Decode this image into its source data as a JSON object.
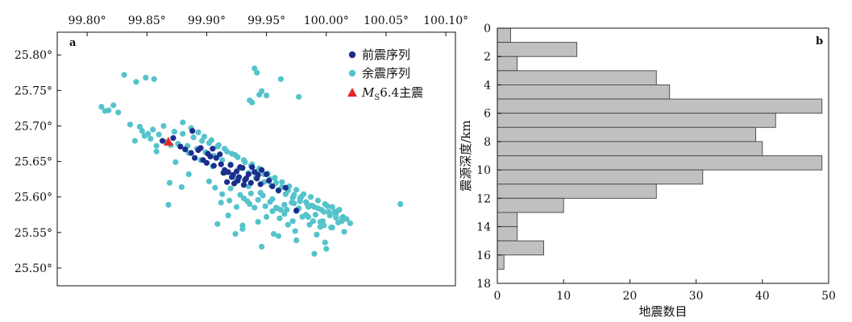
{
  "chart_data": [
    {
      "type": "scatter",
      "panel_label": "a",
      "x_ticks": [
        "99.80°",
        "99.85°",
        "99.90°",
        "99.95°",
        "100.00°",
        "100.05°",
        "100.10°"
      ],
      "y_ticks": [
        "25.80°",
        "25.75°",
        "25.70°",
        "25.65°",
        "25.60°",
        "25.55°",
        "25.50°"
      ],
      "xlim": [
        99.775,
        100.108
      ],
      "ylim": [
        25.475,
        25.832
      ],
      "legend_position": "top-right",
      "series": [
        {
          "name": "前震序列",
          "color": "#1c2e8c",
          "marker": "circle",
          "x": [
            99.863,
            99.872,
            99.878,
            99.882,
            99.887,
            99.89,
            99.893,
            99.897,
            99.9,
            99.903,
            99.906,
            99.908,
            99.912,
            99.915,
            99.918,
            99.92,
            99.922,
            99.925,
            99.927,
            99.93,
            99.932,
            99.935,
            99.937,
            99.94,
            99.942,
            99.945,
            99.95,
            99.955,
            99.96,
            99.966,
            99.905,
            99.911,
            99.917,
            99.923,
            99.928,
            99.933,
            99.946,
            99.952,
            99.975,
            99.888,
            99.895,
            99.901,
            99.914,
            99.921,
            99.926,
            99.931,
            99.938,
            99.943
          ],
          "y": [
            25.679,
            25.683,
            25.671,
            25.667,
            25.662,
            25.655,
            25.666,
            25.652,
            25.648,
            25.657,
            25.644,
            25.655,
            25.646,
            25.638,
            25.635,
            25.645,
            25.631,
            25.636,
            25.628,
            25.641,
            25.624,
            25.632,
            25.62,
            25.635,
            25.626,
            25.618,
            25.632,
            25.615,
            25.609,
            25.613,
            25.668,
            25.66,
            25.621,
            25.619,
            25.642,
            25.626,
            25.638,
            25.623,
            25.581,
            25.693,
            25.669,
            25.661,
            25.634,
            25.628,
            25.623,
            25.617,
            25.642,
            25.631
          ]
        },
        {
          "name": "余震序列",
          "color": "#55c3cb",
          "marker": "circle",
          "x": [
            99.812,
            99.818,
            99.822,
            99.826,
            99.836,
            99.844,
            99.851,
            99.858,
            99.846,
            99.84,
            99.848,
            99.853,
            99.855,
            99.86,
            99.864,
            99.866,
            99.87,
            99.873,
            99.876,
            99.88,
            99.884,
            99.889,
            99.892,
            99.896,
            99.899,
            99.902,
            99.906,
            99.909,
            99.913,
            99.917,
            99.92,
            99.924,
            99.927,
            99.931,
            99.935,
            99.938,
            99.941,
            99.944,
            99.948,
            99.951,
            99.954,
            99.957,
            99.96,
            99.963,
            99.966,
            99.969,
            99.972,
            99.975,
            99.978,
            99.981,
            99.984,
            99.987,
            99.99,
            99.993,
            99.996,
            99.999,
            100.002,
            100.005,
            100.008,
            100.011,
            100.014,
            100.017,
            100.02,
            99.88,
            99.887,
            99.893,
            99.898,
            99.904,
            99.91,
            99.915,
            99.921,
            99.926,
            99.932,
            99.937,
            99.943,
            99.948,
            99.953,
            99.958,
            99.963,
            99.968,
            99.973,
            99.978,
            99.983,
            99.988,
            99.993,
            99.998,
            100.003,
            100.008,
            100.013,
            99.885,
            99.895,
            99.905,
            99.915,
            99.925,
            99.935,
            99.945,
            99.955,
            99.965,
            99.975,
            99.985,
            99.995,
            100.005,
            100.015,
            99.94,
            99.942,
            99.944,
            99.936,
            99.946,
            99.95,
            99.962,
            99.977,
            99.938,
            99.815,
            99.831,
            99.841,
            99.849,
            99.856,
            99.869,
            99.868,
            99.885,
            99.874,
            99.858,
            99.879,
            99.909,
            99.912,
            99.918,
            99.924,
            99.93,
            99.936,
            99.943,
            99.95,
            99.956,
            99.962,
            99.968,
            99.974,
            99.98,
            99.986,
            99.992,
            99.998,
            100.004,
            100.01,
            99.902,
            99.907,
            99.913,
            99.919,
            99.925,
            99.931,
            99.937,
            99.943,
            99.949,
            99.955,
            99.961,
            99.967,
            99.973,
            99.979,
            99.985,
            99.991,
            99.997,
            100.003,
            100.009,
            99.92,
            99.928,
            99.934,
            99.94,
            99.947,
            99.953,
            99.959,
            99.965,
            99.971,
            99.977,
            99.983,
            99.989,
            99.995,
            100.001,
            100.007,
            100.013,
            99.93,
            99.946,
            99.96,
            99.975,
            99.99,
            100.0,
            99.972,
            99.958,
            99.999,
            100.062
          ],
          "y": [
            25.727,
            25.722,
            25.729,
            25.719,
            25.702,
            25.699,
            25.689,
            25.672,
            25.693,
            25.679,
            25.686,
            25.682,
            25.695,
            25.688,
            25.7,
            25.677,
            25.673,
            25.692,
            25.675,
            25.689,
            25.672,
            25.684,
            25.668,
            25.679,
            25.663,
            25.676,
            25.658,
            25.671,
            25.652,
            25.664,
            25.646,
            25.659,
            25.64,
            25.652,
            25.634,
            25.646,
            25.627,
            25.64,
            25.621,
            25.633,
            25.616,
            25.627,
            25.61,
            25.621,
            25.604,
            25.615,
            25.599,
            25.61,
            25.594,
            25.604,
            25.59,
            25.6,
            25.586,
            25.595,
            25.582,
            25.59,
            25.579,
            25.586,
            25.576,
            25.582,
            25.572,
            25.569,
            25.563,
            25.705,
            25.697,
            25.691,
            25.685,
            25.68,
            25.673,
            25.668,
            25.661,
            25.656,
            25.649,
            25.644,
            25.637,
            25.632,
            25.625,
            25.62,
            25.614,
            25.609,
            25.603,
            25.598,
            25.593,
            25.588,
            25.584,
            25.579,
            25.575,
            25.571,
            25.566,
            25.662,
            25.652,
            25.643,
            25.634,
            25.625,
            25.615,
            25.606,
            25.597,
            25.589,
            25.58,
            25.572,
            25.565,
            25.557,
            25.551,
            25.781,
            25.775,
            25.744,
            25.736,
            25.749,
            25.743,
            25.766,
            25.741,
            25.733,
            25.721,
            25.772,
            25.762,
            25.768,
            25.766,
            25.62,
            25.589,
            25.632,
            25.649,
            25.664,
            25.614,
            25.562,
            25.592,
            25.574,
            25.548,
            25.56,
            25.59,
            25.565,
            25.572,
            25.548,
            25.582,
            25.561,
            25.552,
            25.572,
            25.561,
            25.547,
            25.56,
            25.557,
            25.564,
            25.622,
            25.613,
            25.604,
            25.595,
            25.586,
            25.598,
            25.605,
            25.596,
            25.587,
            25.58,
            25.57,
            25.582,
            25.591,
            25.6,
            25.586,
            25.575,
            25.566,
            25.574,
            25.58,
            25.612,
            25.603,
            25.594,
            25.585,
            25.602,
            25.593,
            25.584,
            25.576,
            25.592,
            25.584,
            25.575,
            25.566,
            25.558,
            25.587,
            25.579,
            25.57,
            25.555,
            25.53,
            25.545,
            25.539,
            25.52,
            25.527,
            25.566,
            25.585,
            25.536,
            25.59
          ]
        }
      ],
      "mainshock": {
        "label": "6.4主震",
        "magnitude_prefix": "M",
        "magnitude_sub": "S",
        "x": 99.868,
        "y": 25.678,
        "color": "#e8262a",
        "marker": "triangle"
      }
    },
    {
      "type": "bar",
      "orientation": "horizontal",
      "panel_label": "b",
      "xlabel": "地震数目",
      "ylabel": "震源深度/km",
      "xlim": [
        0,
        50
      ],
      "ylim": [
        0,
        18
      ],
      "x_ticks": [
        "0",
        "10",
        "20",
        "30",
        "40",
        "50"
      ],
      "y_ticks": [
        "0",
        "2",
        "4",
        "6",
        "8",
        "10",
        "12",
        "14",
        "16",
        "18"
      ],
      "bar_color": "#c0c0c0",
      "bar_edge": "#444444",
      "bin_width": 1,
      "depth_bins_start": [
        0,
        1,
        2,
        3,
        4,
        5,
        6,
        7,
        8,
        9,
        10,
        11,
        12,
        13,
        14,
        15,
        16,
        17
      ],
      "values": [
        2,
        12,
        3,
        24,
        26,
        49,
        42,
        39,
        40,
        49,
        31,
        24,
        10,
        3,
        3,
        7,
        1,
        0
      ]
    }
  ]
}
